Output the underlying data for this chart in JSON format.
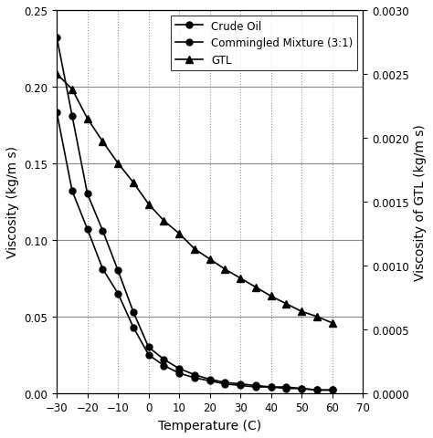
{
  "xlabel": "Temperature (C)",
  "ylabel_left": "Viscosity (kg/m s)",
  "ylabel_right": "Viscosity of GTL (kg/m s)",
  "xlim": [
    -30,
    70
  ],
  "ylim_left": [
    0,
    0.25
  ],
  "ylim_right": [
    0,
    0.003
  ],
  "xticks": [
    -30,
    -20,
    -10,
    0,
    10,
    20,
    30,
    40,
    50,
    60,
    70
  ],
  "yticks_left": [
    0.0,
    0.05,
    0.1,
    0.15,
    0.2,
    0.25
  ],
  "yticks_right": [
    0,
    0.0005,
    0.001,
    0.0015,
    0.002,
    0.0025,
    0.003
  ],
  "crude_oil": {
    "label": "Crude Oil",
    "temp": [
      -30,
      -25,
      -20,
      -15,
      -10,
      -5,
      0,
      5,
      10,
      15,
      20,
      25,
      30,
      35,
      40,
      45,
      50,
      55,
      60
    ],
    "visc": [
      0.232,
      0.181,
      0.13,
      0.106,
      0.08,
      0.053,
      0.03,
      0.022,
      0.016,
      0.012,
      0.009,
      0.007,
      0.006,
      0.005,
      0.004,
      0.004,
      0.003,
      0.002,
      0.002
    ],
    "marker": "o",
    "markersize": 5,
    "linewidth": 1.2
  },
  "commingled": {
    "label": "Commingled Mixture (3:1)",
    "temp": [
      -30,
      -25,
      -20,
      -15,
      -10,
      -5,
      0,
      5,
      10,
      15,
      20,
      25,
      30,
      35,
      40,
      45,
      50,
      55,
      60
    ],
    "visc": [
      0.183,
      0.132,
      0.107,
      0.081,
      0.065,
      0.043,
      0.025,
      0.018,
      0.013,
      0.01,
      0.008,
      0.006,
      0.005,
      0.004,
      0.004,
      0.003,
      0.003,
      0.002,
      0.002
    ],
    "marker": "o",
    "markersize": 5,
    "linewidth": 1.2
  },
  "gtl": {
    "label": "GTL",
    "temp": [
      -30,
      -25,
      -20,
      -15,
      -10,
      -5,
      0,
      5,
      10,
      15,
      20,
      25,
      30,
      35,
      40,
      45,
      50,
      55,
      60
    ],
    "visc": [
      0.0025,
      0.00238,
      0.00215,
      0.00197,
      0.0018,
      0.00165,
      0.00148,
      0.00135,
      0.00125,
      0.00113,
      0.00105,
      0.00097,
      0.0009,
      0.00083,
      0.00076,
      0.0007,
      0.00064,
      0.0006,
      0.00055
    ],
    "marker": "^",
    "markersize": 6,
    "linewidth": 1.2
  },
  "color": "#000000",
  "background_color": "#ffffff",
  "grid_color_v": "#999999",
  "grid_color_h": "#888888",
  "legend_fontsize": 8.5,
  "axis_fontsize": 10,
  "tick_fontsize": 8.5
}
